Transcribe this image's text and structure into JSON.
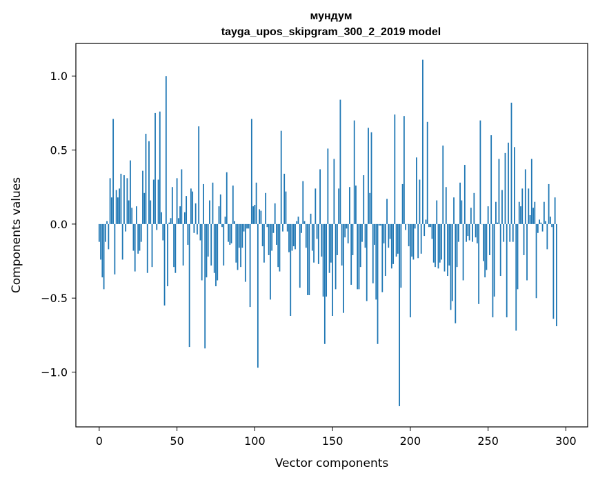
{
  "chart_data": {
    "type": "bar",
    "title": "мундум",
    "subtitle": "tayga_upos_skipgram_300_2_2019 model",
    "xlabel": "Vector components",
    "ylabel": "Components values",
    "xlim": [
      -15,
      314
    ],
    "ylim": [
      -1.37,
      1.22
    ],
    "xticks": [
      0,
      50,
      100,
      150,
      200,
      250,
      300
    ],
    "yticks": [
      -1.0,
      -0.5,
      0.0,
      0.5,
      1.0
    ],
    "ytick_labels": [
      "−1.0",
      "−0.5",
      "0.0",
      "0.5",
      "1.0"
    ],
    "color": "#1f77b4",
    "grid": false,
    "values": [
      -0.12,
      -0.24,
      -0.36,
      -0.44,
      -0.12,
      0.02,
      -0.17,
      0.31,
      0.18,
      0.71,
      -0.34,
      0.23,
      0.18,
      0.24,
      0.34,
      -0.24,
      0.33,
      -0.05,
      0.31,
      0.16,
      0.43,
      0.11,
      -0.18,
      -0.32,
      0.12,
      -0.2,
      -0.18,
      -0.12,
      0.36,
      0.21,
      0.61,
      -0.33,
      0.56,
      0.16,
      -0.29,
      0.3,
      0.75,
      -0.04,
      0.3,
      0.76,
      0.08,
      -0.11,
      -0.55,
      1.0,
      -0.42,
      0.01,
      0.04,
      0.25,
      -0.29,
      -0.33,
      0.31,
      0.04,
      0.12,
      0.37,
      -0.28,
      0.08,
      0.19,
      -0.14,
      -0.83,
      0.24,
      0.22,
      -0.06,
      0.14,
      -0.07,
      0.66,
      -0.11,
      -0.38,
      0.27,
      -0.84,
      -0.36,
      -0.22,
      0.16,
      -0.28,
      0.28,
      -0.33,
      -0.42,
      -0.38,
      0.12,
      0.2,
      -0.02,
      -0.28,
      0.05,
      0.35,
      -0.12,
      -0.14,
      -0.13,
      0.26,
      0.02,
      -0.26,
      -0.31,
      -0.16,
      -0.29,
      -0.16,
      -0.05,
      -0.39,
      -0.03,
      -0.03,
      -0.56,
      0.71,
      0.12,
      0.13,
      0.28,
      -0.97,
      0.1,
      0.09,
      -0.15,
      -0.26,
      0.21,
      -0.02,
      -0.21,
      -0.51,
      -0.18,
      -0.06,
      0.14,
      -0.14,
      -0.29,
      -0.32,
      0.63,
      -0.05,
      0.34,
      0.22,
      -0.05,
      -0.19,
      -0.62,
      -0.18,
      -0.15,
      -0.17,
      0.02,
      0.05,
      -0.43,
      -0.06,
      0.29,
      0.02,
      -0.16,
      -0.48,
      -0.48,
      0.07,
      -0.18,
      -0.26,
      0.24,
      -0.1,
      -0.27,
      0.37,
      -0.22,
      -0.49,
      -0.81,
      -0.49,
      0.51,
      -0.33,
      -0.26,
      -0.62,
      0.44,
      -0.44,
      -0.21,
      0.24,
      0.84,
      -0.28,
      -0.6,
      -0.09,
      -0.03,
      -0.13,
      0.25,
      -0.41,
      -0.21,
      0.7,
      0.26,
      -0.44,
      -0.44,
      -0.29,
      -0.12,
      0.33,
      -0.16,
      -0.52,
      0.65,
      0.21,
      0.62,
      -0.4,
      -0.14,
      -0.51,
      -0.81,
      -0.01,
      -0.01,
      -0.46,
      -0.13,
      -0.35,
      0.17,
      -0.16,
      -0.1,
      -0.3,
      -0.27,
      0.74,
      -0.22,
      -0.2,
      -1.23,
      -0.43,
      0.27,
      0.73,
      -0.04,
      0.0,
      -0.15,
      -0.63,
      -0.22,
      -0.24,
      -0.03,
      0.45,
      -0.23,
      0.3,
      -0.2,
      1.11,
      -0.08,
      0.03,
      0.69,
      -0.02,
      -0.02,
      -0.1,
      -0.26,
      -0.29,
      0.16,
      -0.3,
      -0.26,
      -0.24,
      0.53,
      -0.32,
      0.25,
      -0.35,
      -0.28,
      -0.58,
      -0.52,
      0.18,
      -0.67,
      -0.29,
      -0.12,
      0.28,
      0.16,
      -0.38,
      0.4,
      -0.12,
      -0.08,
      -0.11,
      0.11,
      -0.12,
      0.21,
      -0.09,
      -0.13,
      -0.54,
      0.7,
      0.0,
      -0.25,
      -0.36,
      -0.31,
      0.12,
      -0.21,
      0.6,
      -0.63,
      -0.49,
      0.15,
      0.01,
      0.44,
      -0.35,
      0.23,
      -0.12,
      0.48,
      -0.63,
      0.55,
      -0.12,
      0.82,
      -0.12,
      0.52,
      -0.72,
      -0.44,
      0.15,
      0.12,
      0.24,
      -0.21,
      0.37,
      -0.38,
      0.24,
      0.06,
      0.44,
      0.11,
      0.15,
      -0.5,
      -0.06,
      0.03,
      0.01,
      -0.05,
      0.15,
      0.02,
      -0.17,
      0.27,
      0.05,
      -0.02,
      -0.64,
      0.18,
      -0.69
    ]
  }
}
